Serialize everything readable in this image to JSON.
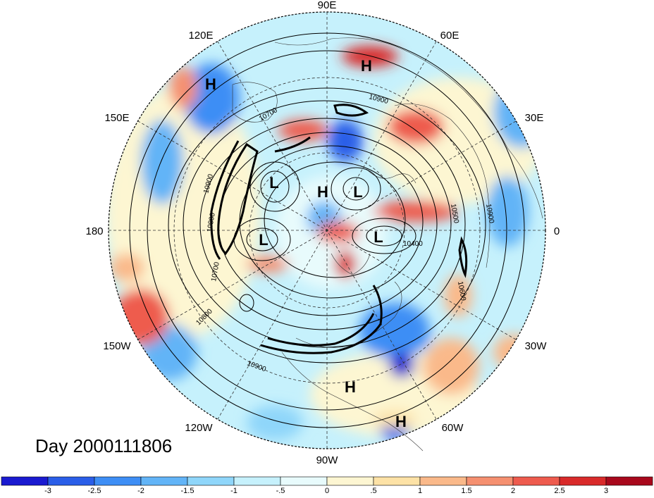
{
  "title": "Day 2000111806",
  "longitude_labels": {
    "lon_0": "0",
    "lon_30e": "30E",
    "lon_60e": "60E",
    "lon_90e": "90E",
    "lon_120e": "120E",
    "lon_150e": "150E",
    "lon_180": "180",
    "lon_150w": "150W",
    "lon_120w": "120W",
    "lon_90w": "90W",
    "lon_60w": "60W",
    "lon_30w": "30W"
  },
  "pressure_centers": [
    {
      "type": "H",
      "label": "H"
    },
    {
      "type": "H",
      "label": "H"
    },
    {
      "type": "L",
      "label": "L"
    },
    {
      "type": "H",
      "label": "H"
    },
    {
      "type": "L",
      "label": "L"
    },
    {
      "type": "L",
      "label": "L"
    },
    {
      "type": "L",
      "label": "L"
    },
    {
      "type": "H",
      "label": "H"
    },
    {
      "type": "H",
      "label": "H"
    }
  ],
  "contour_labels": [
    "10900",
    "10700",
    "10900",
    "10800",
    "10700",
    "10800",
    "10900",
    "10400",
    "10900",
    "10500",
    "10600"
  ],
  "colorbar": {
    "colors": [
      "#1a1ad0",
      "#2a5ee8",
      "#3e8ef5",
      "#62b4f7",
      "#8fd6fa",
      "#c6f1fc",
      "#e8fbfc",
      "#fdf6d2",
      "#fde2a6",
      "#fab98a",
      "#f59070",
      "#ee5b4e",
      "#d92a2a",
      "#a8081c"
    ],
    "tick_labels": [
      "-3",
      "-2.5",
      "-2",
      "-1.5",
      "-1",
      "-.5",
      "0",
      ".5",
      "1",
      "1.5",
      "2",
      "2.5",
      "3"
    ]
  }
}
